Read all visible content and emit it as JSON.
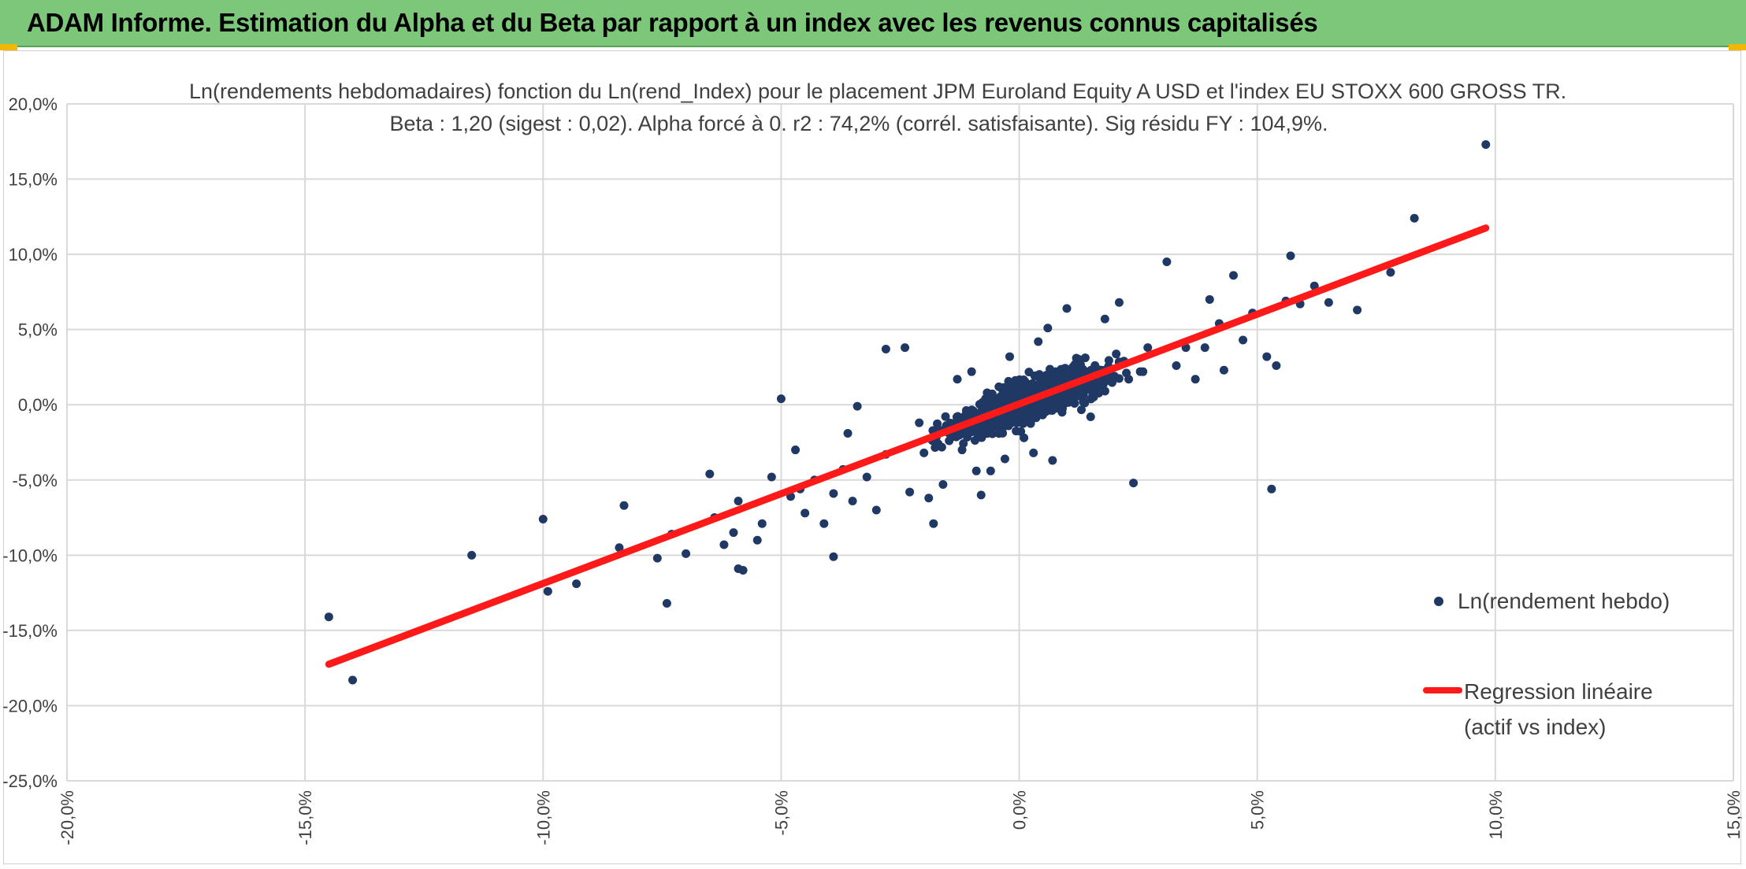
{
  "header": {
    "title": "ADAM Informe. Estimation du Alpha et du Beta par rapport à un index avec les revenus connus capitalisés",
    "accent_color": "#7dc77a"
  },
  "chart_data": {
    "type": "scatter",
    "title": "Ln(rendements hebdomadaires) fonction du Ln(rend_Index) pour le placement JPM Euroland Equity A USD et l'index EU STOXX 600 GROSS TR.",
    "subtitle": "Beta : 1,20 (sigest : 0,02).  Alpha forcé à 0. r2 : 74,2% (corrél. satisfaisante). Sig résidu FY : 104,9%.",
    "xlabel": "",
    "ylabel": "",
    "xlim": [
      -20,
      15
    ],
    "ylim": [
      -25,
      20
    ],
    "x_ticks": [
      -20,
      -15,
      -10,
      -5,
      0,
      5,
      10,
      15
    ],
    "y_ticks": [
      20,
      15,
      10,
      5,
      0,
      -5,
      -10,
      -15,
      -20,
      -25
    ],
    "x_tick_labels": [
      "-20,0%",
      "-15,0%",
      "-10,0%",
      "-5,0%",
      "0,0%",
      "5,0%",
      "10,0%",
      "15,0%"
    ],
    "y_tick_labels": [
      "20,0%",
      "15,0%",
      "10,0%",
      "5,0%",
      "0,0%",
      "-5,0%",
      "-10,0%",
      "-15,0%",
      "-20,0%",
      "-25,0%"
    ],
    "grid": true,
    "legend_position": "right",
    "series": [
      {
        "name": "Ln(rendement hebdo)",
        "type": "scatter",
        "color": "#203864",
        "points": [
          [
            -14.5,
            -14.1
          ],
          [
            -14.0,
            -18.3
          ],
          [
            -11.5,
            -10.0
          ],
          [
            -10.0,
            -7.6
          ],
          [
            -9.9,
            -12.4
          ],
          [
            -9.3,
            -11.9
          ],
          [
            -8.4,
            -9.5
          ],
          [
            -8.3,
            -6.7
          ],
          [
            -7.6,
            -10.2
          ],
          [
            -7.4,
            -13.2
          ],
          [
            -7.3,
            -8.6
          ],
          [
            -7.0,
            -9.9
          ],
          [
            -6.5,
            -4.6
          ],
          [
            -6.4,
            -7.5
          ],
          [
            -6.2,
            -9.3
          ],
          [
            -6.0,
            -8.5
          ],
          [
            -5.9,
            -6.4
          ],
          [
            -5.9,
            -10.9
          ],
          [
            -5.8,
            -11.0
          ],
          [
            -5.5,
            -9.0
          ],
          [
            -5.4,
            -7.9
          ],
          [
            -5.2,
            -4.8
          ],
          [
            -5.0,
            0.4
          ],
          [
            -4.8,
            -6.1
          ],
          [
            -4.7,
            -3.0
          ],
          [
            -4.6,
            -5.6
          ],
          [
            -4.5,
            -7.2
          ],
          [
            -4.3,
            -5.0
          ],
          [
            -4.1,
            -7.9
          ],
          [
            -3.9,
            -10.1
          ],
          [
            -3.9,
            -5.9
          ],
          [
            -3.7,
            -4.3
          ],
          [
            -3.6,
            -1.9
          ],
          [
            -3.5,
            -6.4
          ],
          [
            -3.4,
            -0.1
          ],
          [
            -3.2,
            -4.8
          ],
          [
            -3.0,
            -7.0
          ],
          [
            -2.8,
            -3.3
          ],
          [
            -2.8,
            3.7
          ],
          [
            -2.4,
            3.8
          ],
          [
            -2.3,
            -5.8
          ],
          [
            -2.1,
            -1.2
          ],
          [
            -2.0,
            -3.2
          ],
          [
            -1.9,
            -6.2
          ],
          [
            -1.8,
            -7.9
          ],
          [
            -1.6,
            -5.3
          ],
          [
            -1.5,
            -1.8
          ],
          [
            -1.3,
            1.7
          ],
          [
            -1.2,
            -3.0
          ],
          [
            -1.0,
            2.2
          ],
          [
            -0.9,
            -4.4
          ],
          [
            -0.8,
            -6.0
          ],
          [
            -0.6,
            -4.4
          ],
          [
            -0.5,
            0.1
          ],
          [
            -0.3,
            -3.6
          ],
          [
            -0.2,
            3.2
          ],
          [
            0.1,
            -2.2
          ],
          [
            0.3,
            -3.2
          ],
          [
            0.4,
            4.2
          ],
          [
            0.6,
            5.1
          ],
          [
            0.7,
            -3.7
          ],
          [
            0.9,
            -0.5
          ],
          [
            1.0,
            6.4
          ],
          [
            1.2,
            3.1
          ],
          [
            1.5,
            -0.8
          ],
          [
            1.8,
            5.7
          ],
          [
            2.0,
            1.9
          ],
          [
            2.1,
            6.8
          ],
          [
            2.3,
            1.7
          ],
          [
            2.4,
            -5.2
          ],
          [
            2.7,
            3.8
          ],
          [
            3.1,
            9.5
          ],
          [
            3.3,
            2.6
          ],
          [
            3.5,
            3.8
          ],
          [
            3.7,
            1.7
          ],
          [
            3.9,
            3.8
          ],
          [
            4.0,
            7.0
          ],
          [
            4.2,
            5.4
          ],
          [
            4.3,
            2.3
          ],
          [
            4.5,
            8.6
          ],
          [
            4.7,
            4.3
          ],
          [
            4.9,
            6.1
          ],
          [
            5.2,
            3.2
          ],
          [
            5.3,
            -5.6
          ],
          [
            5.4,
            2.6
          ],
          [
            5.6,
            6.9
          ],
          [
            5.7,
            9.9
          ],
          [
            5.9,
            6.7
          ],
          [
            6.2,
            7.9
          ],
          [
            6.5,
            6.8
          ],
          [
            7.1,
            6.3
          ],
          [
            7.8,
            8.8
          ],
          [
            8.3,
            12.4
          ],
          [
            9.8,
            17.3
          ],
          [
            0.5,
            1.5
          ],
          [
            0.8,
            1.2
          ],
          [
            1.1,
            2.3
          ],
          [
            -0.4,
            -0.8
          ],
          [
            -1.1,
            -1.5
          ],
          [
            0.2,
            0.6
          ],
          [
            1.6,
            1.9
          ],
          [
            -0.7,
            -0.2
          ],
          [
            0.0,
            0.3
          ],
          [
            2.2,
            2.9
          ],
          [
            -1.4,
            -2.1
          ],
          [
            0.9,
            0.7
          ],
          [
            1.3,
            1.0
          ],
          [
            -0.2,
            -1.1
          ],
          [
            2.6,
            2.2
          ],
          [
            -1.7,
            -2.6
          ]
        ]
      },
      {
        "name": "Regression linéaire (actif vs index)",
        "type": "line",
        "color": "#ff1a1a",
        "points": [
          [
            -14.5,
            -17.25
          ],
          [
            9.8,
            11.75
          ]
        ]
      }
    ]
  },
  "legend": {
    "scatter_label": "Ln(rendement hebdo)",
    "line_label_1": "Regression linéaire",
    "line_label_2": "(actif vs index)"
  }
}
